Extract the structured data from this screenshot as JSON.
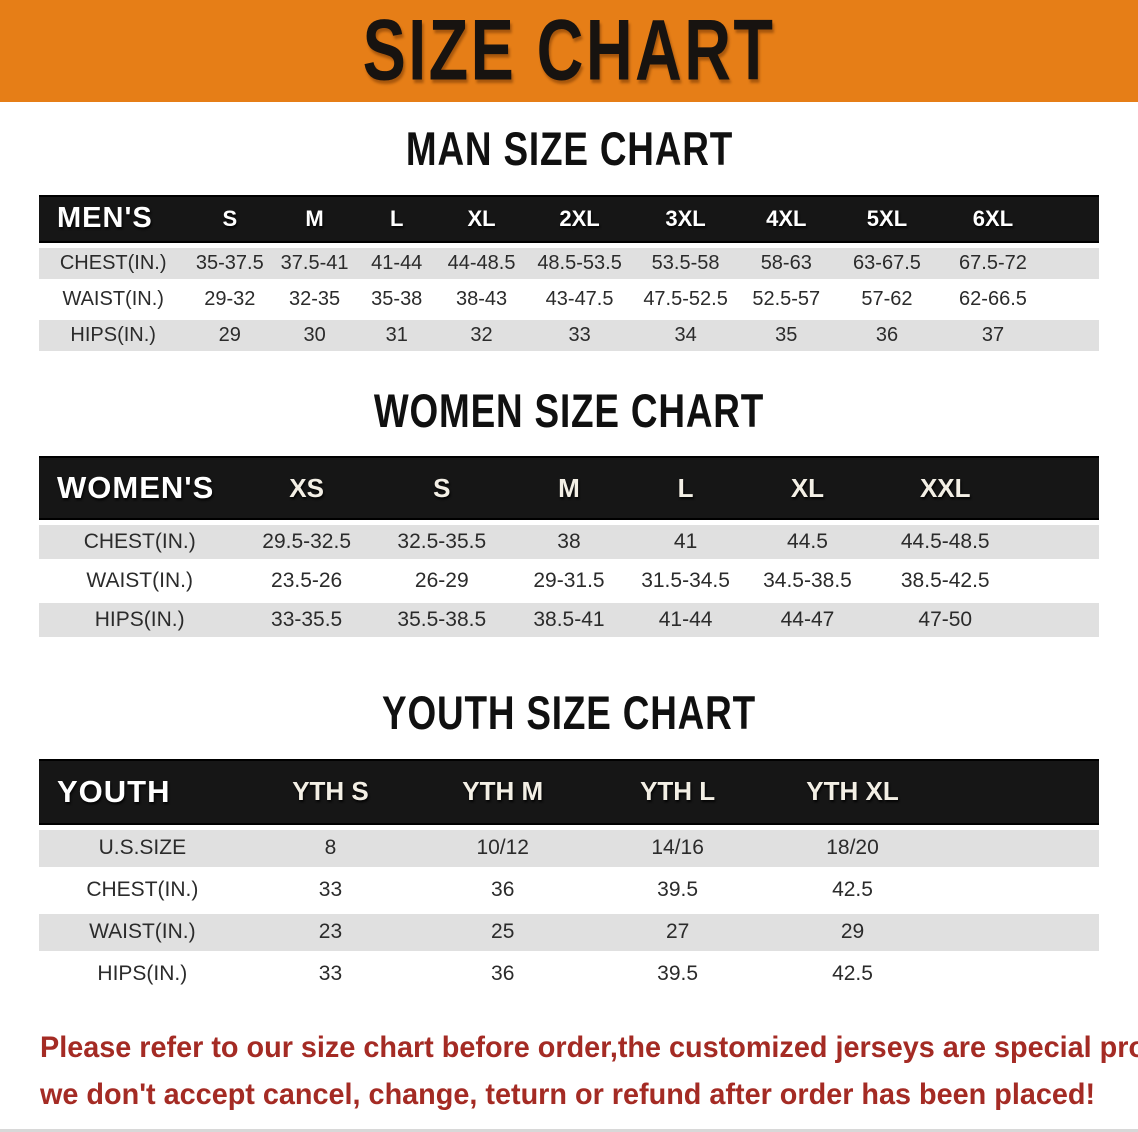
{
  "banner": {
    "title": "SIZE CHART"
  },
  "colors": {
    "banner_bg": "#E67E17",
    "table_header_bg": "#161616",
    "row_shade": "#E0E0E0",
    "footer_text": "#A42B24"
  },
  "sections": [
    {
      "id": "mens",
      "heading": "MAN SIZE CHART",
      "table": {
        "corner_label": "MEN'S",
        "columns": [
          "S",
          "M",
          "L",
          "XL",
          "2XL",
          "3XL",
          "4XL",
          "5XL",
          "6XL"
        ],
        "rows": [
          {
            "label": "CHEST(IN.)",
            "values": [
              "35-37.5",
              "37.5-41",
              "41-44",
              "44-48.5",
              "48.5-53.5",
              "53.5-58",
              "58-63",
              "63-67.5",
              "67.5-72"
            ]
          },
          {
            "label": "WAIST(IN.)",
            "values": [
              "29-32",
              "32-35",
              "35-38",
              "38-43",
              "43-47.5",
              "47.5-52.5",
              "52.5-57",
              "57-62",
              "62-66.5"
            ]
          },
          {
            "label": "HIPS(IN.)",
            "values": [
              "29",
              "30",
              "31",
              "32",
              "33",
              "34",
              "35",
              "36",
              "37"
            ]
          }
        ]
      }
    },
    {
      "id": "womens",
      "heading": "WOMEN SIZE CHART",
      "table": {
        "corner_label": "WOMEN'S",
        "columns": [
          "XS",
          "S",
          "M",
          "L",
          "XL",
          "XXL"
        ],
        "rows": [
          {
            "label": "CHEST(IN.)",
            "values": [
              "29.5-32.5",
              "32.5-35.5",
              "38",
              "41",
              "44.5",
              "44.5-48.5"
            ]
          },
          {
            "label": "WAIST(IN.)",
            "values": [
              "23.5-26",
              "26-29",
              "29-31.5",
              "31.5-34.5",
              "34.5-38.5",
              "38.5-42.5"
            ]
          },
          {
            "label": "HIPS(IN.)",
            "values": [
              "33-35.5",
              "35.5-38.5",
              "38.5-41",
              "41-44",
              "44-47",
              "47-50"
            ]
          }
        ]
      }
    },
    {
      "id": "youth",
      "heading": "YOUTH SIZE CHART",
      "table": {
        "corner_label": "YOUTH",
        "columns": [
          "YTH S",
          "YTH M",
          "YTH L",
          "YTH XL"
        ],
        "rows": [
          {
            "label": "U.S.SIZE",
            "values": [
              "8",
              "10/12",
              "14/16",
              "18/20"
            ]
          },
          {
            "label": "CHEST(IN.)",
            "values": [
              "33",
              "36",
              "39.5",
              "42.5"
            ]
          },
          {
            "label": "WAIST(IN.)",
            "values": [
              "23",
              "25",
              "27",
              "29"
            ]
          },
          {
            "label": "HIPS(IN.)",
            "values": [
              "33",
              "36",
              "39.5",
              "42.5"
            ]
          }
        ]
      }
    }
  ],
  "footer": {
    "line1": "Please refer to our size chart before order,the customized jerseys are special products,",
    "line2": "we don't accept cancel, change, teturn or refund after order has been placed!"
  }
}
